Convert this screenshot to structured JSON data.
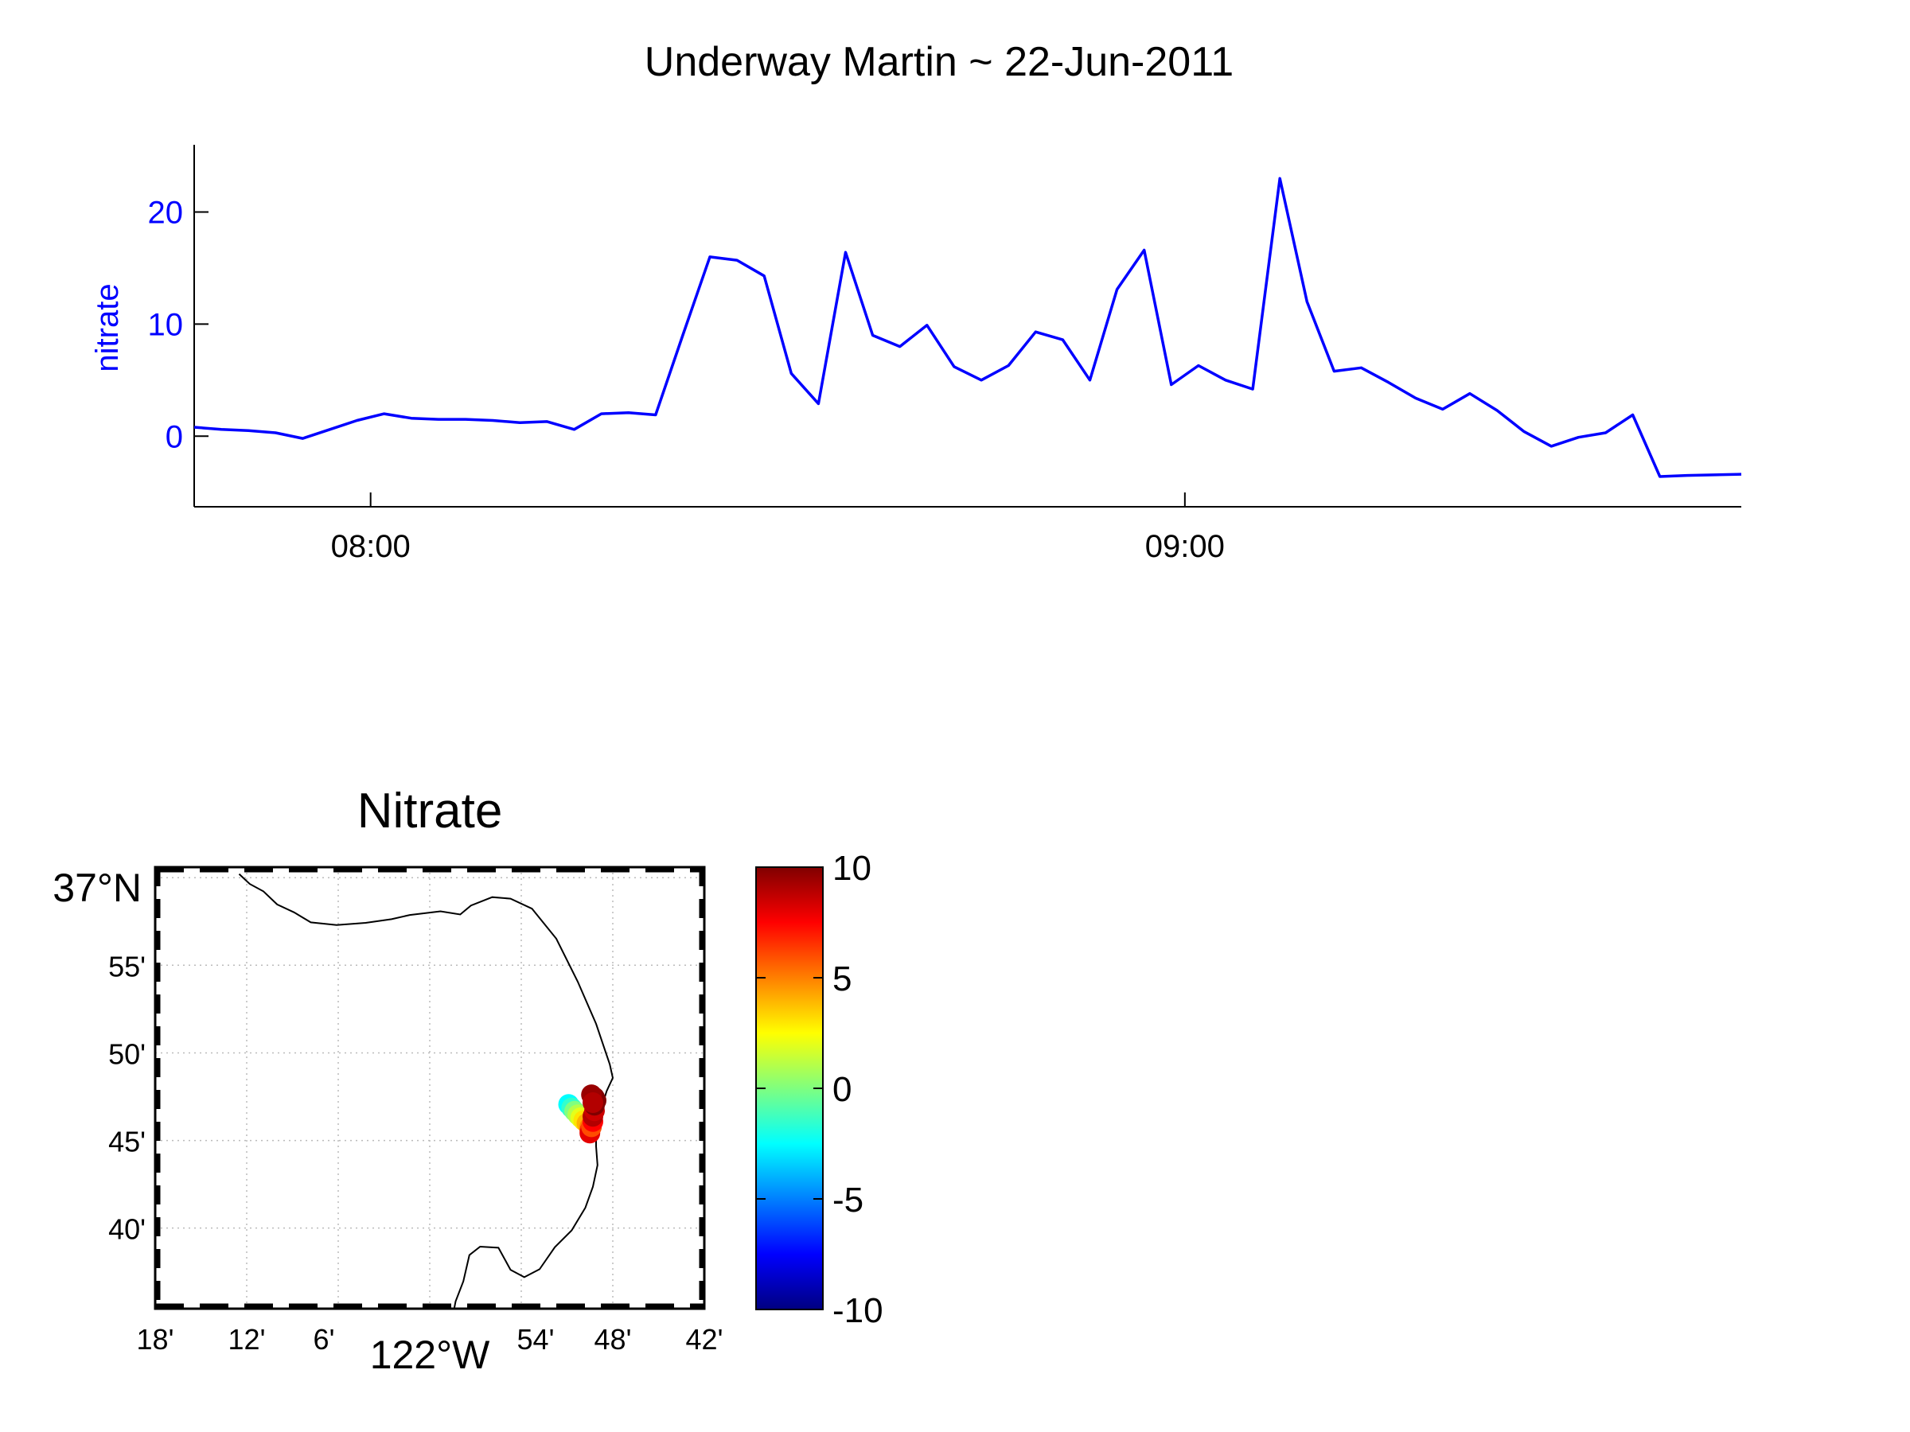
{
  "figure_title": "Underway Martin ~ 22-Jun-2011",
  "colors": {
    "series": "#0000ff",
    "axis": "#000000",
    "grid": "#c8c8c8",
    "coast": "#000000"
  },
  "chart_data": [
    {
      "type": "line",
      "ylabel": "nitrate",
      "xlabel": "",
      "ylim": [
        -6.3,
        26
      ],
      "xlim": [
        "07:47",
        "09:41"
      ],
      "yticks": [
        "0",
        "10",
        "20"
      ],
      "xticks": [
        "08:00",
        "09:00"
      ],
      "series": [
        {
          "x": [
            "07:47",
            "07:49",
            "07:51",
            "07:53",
            "07:55",
            "07:57",
            "07:59",
            "08:01",
            "08:03",
            "08:05",
            "08:07",
            "08:09",
            "08:11",
            "08:13",
            "08:15",
            "08:17",
            "08:19",
            "08:21",
            "08:23",
            "08:25",
            "08:27",
            "08:29",
            "08:31",
            "08:33",
            "08:35",
            "08:37",
            "08:39",
            "08:41",
            "08:43",
            "08:45",
            "08:47",
            "08:49",
            "08:51",
            "08:53",
            "08:55",
            "08:57",
            "08:59",
            "09:01",
            "09:03",
            "09:05",
            "09:07",
            "09:09",
            "09:11",
            "09:13",
            "09:15",
            "09:17",
            "09:19",
            "09:21",
            "09:23",
            "09:25",
            "09:27",
            "09:29",
            "09:31",
            "09:33",
            "09:35",
            "09:37",
            "09:41"
          ],
          "values": [
            0.8,
            0.6,
            0.5,
            0.3,
            -0.2,
            0.6,
            1.4,
            2.0,
            1.6,
            1.5,
            1.5,
            1.4,
            1.2,
            1.3,
            0.6,
            2.0,
            2.1,
            1.9,
            9.0,
            16.0,
            15.7,
            14.3,
            5.6,
            2.9,
            16.4,
            9.0,
            8.0,
            9.9,
            6.2,
            5.0,
            6.3,
            9.3,
            8.6,
            5.0,
            13.1,
            16.6,
            4.6,
            6.3,
            5.0,
            4.2,
            23.0,
            12.0,
            5.8,
            6.1,
            4.8,
            3.4,
            2.4,
            3.8,
            2.3,
            0.4,
            -0.9,
            -0.1,
            0.3,
            1.9,
            -3.6,
            -3.5,
            -3.4
          ]
        }
      ]
    },
    {
      "type": "scatter",
      "title": "Nitrate",
      "map": {
        "lat_labels": [
          "37°N",
          "55'",
          "50'",
          "45'",
          "40'"
        ],
        "lon_labels": [
          "18'",
          "12'",
          "6'",
          "122°W",
          "54'",
          "48'",
          "42'"
        ],
        "lon_range": [
          -122.3,
          -121.7
        ],
        "lat_range": [
          36.59,
          37.01
        ]
      },
      "points": [
        {
          "lon": -121.8483,
          "lat": 36.7843,
          "value": -2.5
        },
        {
          "lon": -121.845,
          "lat": 36.781,
          "value": -1.5
        },
        {
          "lon": -121.8417,
          "lat": 36.7778,
          "value": 0.0
        },
        {
          "lon": -121.8383,
          "lat": 36.7745,
          "value": 1.0
        },
        {
          "lon": -121.835,
          "lat": 36.7717,
          "value": 2.0
        },
        {
          "lon": -121.8317,
          "lat": 36.769,
          "value": 3.0
        },
        {
          "lon": -121.8283,
          "lat": 36.7663,
          "value": 4.0
        },
        {
          "lon": -121.825,
          "lat": 36.763,
          "value": 5.0
        },
        {
          "lon": -121.825,
          "lat": 36.7597,
          "value": 6.5
        },
        {
          "lon": -121.825,
          "lat": 36.757,
          "value": 8.0
        },
        {
          "lon": -121.8233,
          "lat": 36.763,
          "value": 6.0
        },
        {
          "lon": -121.8217,
          "lat": 36.768,
          "value": 7.5
        },
        {
          "lon": -121.8217,
          "lat": 36.773,
          "value": 9.0
        },
        {
          "lon": -121.82,
          "lat": 36.7783,
          "value": 8.5
        },
        {
          "lon": -121.82,
          "lat": 36.7835,
          "value": 10.0
        },
        {
          "lon": -121.8183,
          "lat": 36.788,
          "value": 10.0
        },
        {
          "lon": -121.82,
          "lat": 36.791,
          "value": 10.0
        },
        {
          "lon": -121.8233,
          "lat": 36.7935,
          "value": 9.5
        },
        {
          "lon": -121.8217,
          "lat": 36.786,
          "value": 9.0
        }
      ],
      "coast": [
        [
          -122.2083,
          37.0035
        ],
        [
          -122.1967,
          36.994
        ],
        [
          -122.1817,
          36.987
        ],
        [
          -122.1667,
          36.9745
        ],
        [
          -122.1483,
          36.967
        ],
        [
          -122.13,
          36.9575
        ],
        [
          -122.1017,
          36.955
        ],
        [
          -122.07,
          36.957
        ],
        [
          -122.0417,
          36.9605
        ],
        [
          -122.0217,
          36.9645
        ],
        [
          -121.9883,
          36.968
        ],
        [
          -121.9667,
          36.965
        ],
        [
          -121.955,
          36.9735
        ],
        [
          -121.9317,
          36.9815
        ],
        [
          -121.9117,
          36.98
        ],
        [
          -121.8883,
          36.9705
        ],
        [
          -121.8617,
          36.942
        ],
        [
          -121.8383,
          36.901
        ],
        [
          -121.8183,
          36.861
        ],
        [
          -121.8033,
          36.8225
        ],
        [
          -121.8,
          36.8095
        ],
        [
          -121.8067,
          36.797
        ],
        [
          -121.8117,
          36.783
        ],
        [
          -121.8167,
          36.771
        ],
        [
          -121.8183,
          36.7565
        ],
        [
          -121.8183,
          36.7445
        ],
        [
          -121.8167,
          36.7265
        ],
        [
          -121.8217,
          36.706
        ],
        [
          -121.83,
          36.686
        ],
        [
          -121.845,
          36.6645
        ],
        [
          -121.8633,
          36.6485
        ],
        [
          -121.88,
          36.6275
        ],
        [
          -121.8967,
          36.62
        ],
        [
          -121.9117,
          36.627
        ],
        [
          -121.925,
          36.648
        ],
        [
          -121.945,
          36.649
        ],
        [
          -121.9567,
          36.641
        ],
        [
          -121.9633,
          36.616
        ],
        [
          -121.9717,
          36.597
        ],
        [
          -121.9733,
          36.59
        ]
      ],
      "colorbar": {
        "ticks": [
          "10",
          "5",
          "0",
          "-5",
          "-10"
        ],
        "range": [
          -10,
          10
        ]
      }
    }
  ]
}
